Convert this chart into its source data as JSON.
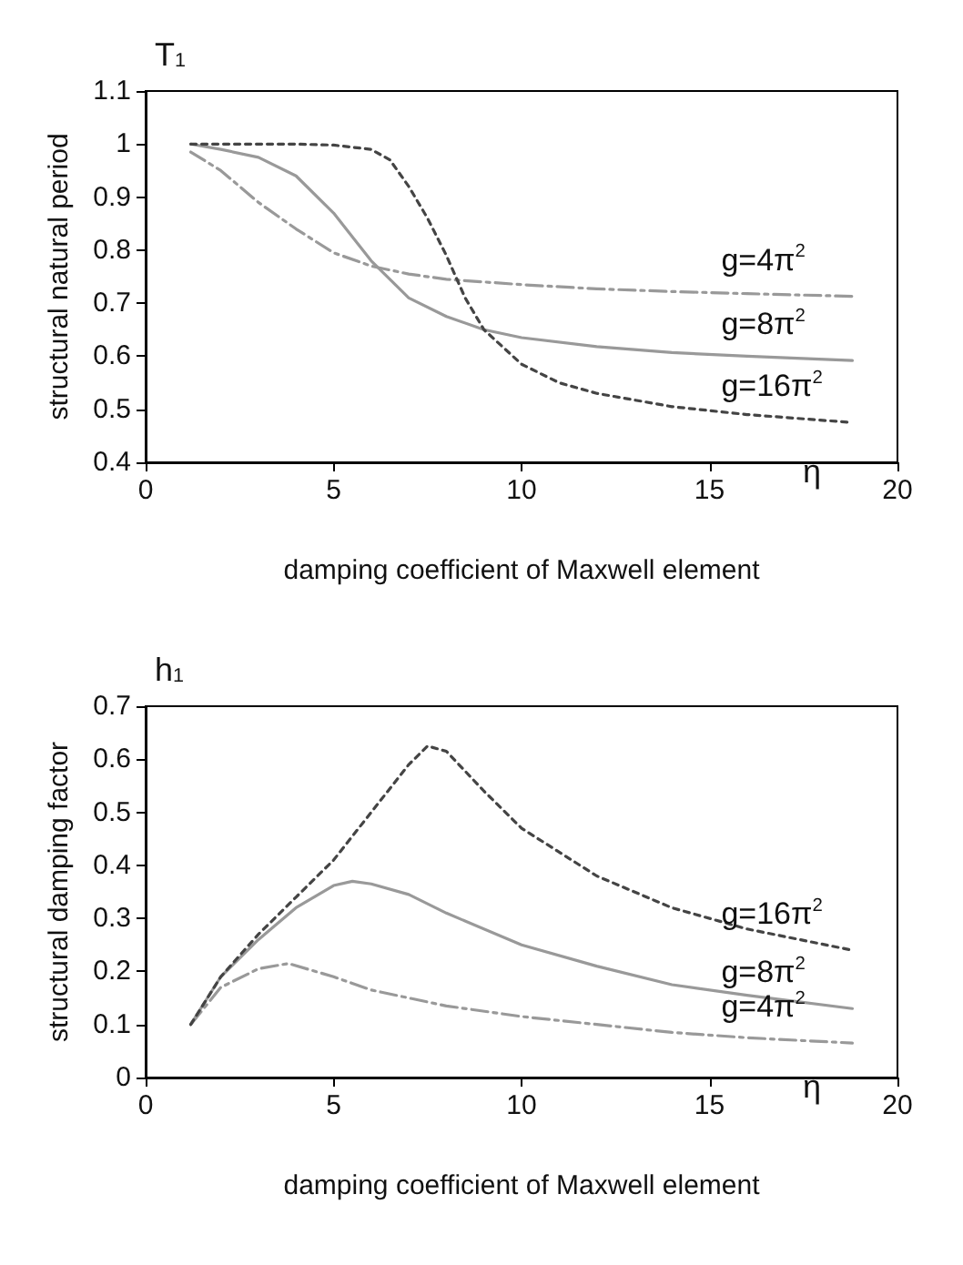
{
  "chart_data": [
    {
      "type": "line",
      "title": "T$_{1}$",
      "ylabel": "structural natural period",
      "xlabel": "damping coefficient of Maxwell element",
      "annotations": [
        "η"
      ],
      "xlim": [
        0,
        20
      ],
      "xticks": [
        0,
        5,
        10,
        15,
        20
      ],
      "ylim": [
        0.4,
        1.1
      ],
      "yticks": [
        0.4,
        0.5,
        0.6,
        0.7,
        0.8,
        0.9,
        1,
        1.1
      ],
      "grid": false,
      "legend": false,
      "marker": "none",
      "series": [
        {
          "name": "g=4π$^{2}$",
          "color": "#999999",
          "line_style": "dashed",
          "x": [
            1.2,
            2,
            3,
            4,
            5,
            6,
            7,
            8,
            10,
            12,
            14,
            16,
            18.8
          ],
          "values": [
            0.985,
            0.95,
            0.89,
            0.84,
            0.795,
            0.77,
            0.755,
            0.745,
            0.735,
            0.727,
            0.722,
            0.718,
            0.713
          ]
        },
        {
          "name": "g=8π$^{2}$",
          "color": "#999999",
          "line_style": "solid",
          "x": [
            1.2,
            2,
            3,
            4,
            5,
            6,
            7,
            8,
            9,
            10,
            12,
            14,
            16,
            18.8
          ],
          "values": [
            1.0,
            0.99,
            0.975,
            0.94,
            0.87,
            0.78,
            0.71,
            0.675,
            0.65,
            0.635,
            0.618,
            0.607,
            0.6,
            0.592
          ]
        },
        {
          "name": "g=16π$^{2}$",
          "color": "#444444",
          "line_style": "dotted",
          "x": [
            1.2,
            3,
            4,
            5,
            6,
            6.5,
            7,
            7.5,
            8,
            8.5,
            9,
            10,
            11,
            12,
            14,
            16,
            18.8
          ],
          "values": [
            1.0,
            1.0,
            1.0,
            0.998,
            0.99,
            0.97,
            0.92,
            0.86,
            0.79,
            0.71,
            0.65,
            0.585,
            0.55,
            0.53,
            0.505,
            0.49,
            0.475
          ]
        }
      ]
    },
    {
      "type": "line",
      "title": "h$_{1}$",
      "ylabel": "structural damping factor",
      "xlabel": "damping coefficient of Maxwell element",
      "annotations": [
        "η"
      ],
      "xlim": [
        0,
        20
      ],
      "xticks": [
        0,
        5,
        10,
        15,
        20
      ],
      "ylim": [
        0,
        0.7
      ],
      "yticks": [
        0,
        0.1,
        0.2,
        0.3,
        0.4,
        0.5,
        0.6,
        0.7
      ],
      "grid": false,
      "legend": false,
      "marker": "none",
      "series": [
        {
          "name": "g=4π$^{2}$",
          "color": "#999999",
          "line_style": "dashed",
          "x": [
            1.2,
            2,
            3,
            3.8,
            5,
            6,
            7,
            8,
            10,
            12,
            14,
            16,
            18.8
          ],
          "values": [
            0.1,
            0.17,
            0.205,
            0.215,
            0.19,
            0.165,
            0.15,
            0.135,
            0.115,
            0.1,
            0.085,
            0.075,
            0.065
          ]
        },
        {
          "name": "g=8π$^{2}$",
          "color": "#999999",
          "line_style": "solid",
          "x": [
            1.2,
            2,
            3,
            4,
            5,
            5.5,
            6,
            7,
            8,
            10,
            12,
            14,
            16,
            18.8
          ],
          "values": [
            0.1,
            0.19,
            0.26,
            0.32,
            0.362,
            0.37,
            0.365,
            0.345,
            0.31,
            0.25,
            0.21,
            0.175,
            0.155,
            0.13
          ]
        },
        {
          "name": "g=16π$^{2}$",
          "color": "#444444",
          "line_style": "dotted",
          "x": [
            1.2,
            2,
            3,
            4,
            5,
            6,
            7,
            7.5,
            8,
            9,
            10,
            12,
            14,
            16,
            18.8
          ],
          "values": [
            0.1,
            0.19,
            0.27,
            0.34,
            0.41,
            0.5,
            0.59,
            0.625,
            0.615,
            0.54,
            0.47,
            0.38,
            0.32,
            0.28,
            0.24
          ]
        }
      ]
    }
  ]
}
